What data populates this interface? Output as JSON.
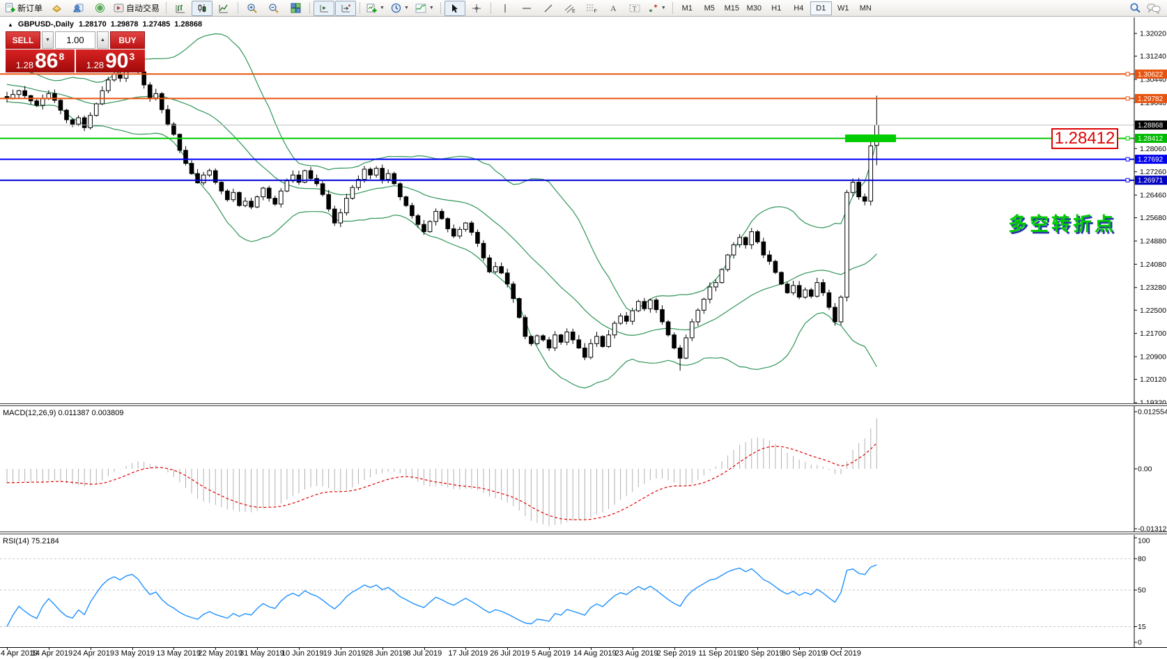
{
  "toolbar": {
    "new_order_label": "新订单",
    "auto_trading_label": "自动交易",
    "timeframes": [
      "M1",
      "M5",
      "M15",
      "M30",
      "H1",
      "H4",
      "D1",
      "W1",
      "MN"
    ],
    "active_timeframe": "D1"
  },
  "chart_header": {
    "symbol_period": "GBPUSD-,Daily",
    "open": "1.28170",
    "high": "1.29878",
    "low": "1.27485",
    "close": "1.28868"
  },
  "trade_panel": {
    "sell_label": "SELL",
    "buy_label": "BUY",
    "volume": "1.00",
    "sell_price": {
      "prefix": "1.28",
      "big": "86",
      "sup": "8"
    },
    "buy_price": {
      "prefix": "1.28",
      "big": "90",
      "sup": "3"
    }
  },
  "price_axis": {
    "top": 1.3202,
    "bottom": 1.1932,
    "ticks": [
      "1.32020",
      "1.31240",
      "1.30440",
      "1.29640",
      "1.28060",
      "1.27260",
      "1.26460",
      "1.25680",
      "1.24880",
      "1.24080",
      "1.23280",
      "1.22500",
      "1.21700",
      "1.20900",
      "1.20120",
      "1.19320"
    ]
  },
  "levels": [
    {
      "price": 1.30622,
      "label": "1.30622",
      "color": "#e8530e",
      "badge_bg": "#e8530e",
      "badge_fg": "#ffffff",
      "width": 2,
      "handle": true,
      "name": "hline-1-30622"
    },
    {
      "price": 1.29782,
      "label": "1.29782",
      "color": "#e8530e",
      "badge_bg": "#e8530e",
      "badge_fg": "#ffffff",
      "width": 2,
      "handle": true,
      "name": "hline-1-29782"
    },
    {
      "price": 1.28868,
      "label": "1.28868",
      "color": "#c0c0c0",
      "badge_bg": "#000000",
      "badge_fg": "#ffffff",
      "width": 1,
      "handle": false,
      "name": "current-bid-line"
    },
    {
      "price": 1.28412,
      "label": "1.28412",
      "color": "#00cc00",
      "badge_bg": "#00ba00",
      "badge_fg": "#ffffff",
      "width": 2,
      "handle": true,
      "name": "hline-1-28412"
    },
    {
      "price": 1.27692,
      "label": "1.27692",
      "color": "#0000ff",
      "badge_bg": "#0000f0",
      "badge_fg": "#ffffff",
      "width": 2,
      "handle": true,
      "name": "hline-1-27692"
    },
    {
      "price": 1.26971,
      "label": "1.26971",
      "color": "#0000d8",
      "badge_bg": "#0000c0",
      "badge_fg": "#ffffff",
      "width": 2,
      "handle": true,
      "name": "hline-1-26971"
    }
  ],
  "annotations": {
    "callout": {
      "text": "1.28412",
      "color": "#dd0101"
    },
    "note": {
      "text": "多空转折点",
      "color": "#00cc00",
      "shadow": "#2838a8"
    },
    "highlight_bar": {
      "price": 1.28412,
      "x": 1213,
      "w": 73,
      "h": 11,
      "color": "#00cc00"
    }
  },
  "macd": {
    "label": "MACD(12,26,9)",
    "value_main": "0.011387",
    "value_signal": "0.003809",
    "axis_ticks": [
      "0.012554",
      "0.00",
      "-0.013128"
    ],
    "max": 0.012554,
    "min": -0.013128
  },
  "rsi": {
    "label": "RSI(14)",
    "value": "75.2184",
    "axis_ticks": [
      "100",
      "80",
      "50",
      "15",
      "0"
    ],
    "grid_levels": [
      80,
      50,
      15
    ]
  },
  "date_axis": [
    "4 Apr 2019",
    "14 Apr 2019",
    "24 Apr 2019",
    "3 May 2019",
    "13 May 2019",
    "22 May 2019",
    "31 May 2019",
    "10 Jun 2019",
    "19 Jun 2019",
    "28 Jun 2019",
    "8 Jul 2019",
    "17 Jul 2019",
    "26 Jul 2019",
    "5 Aug 2019",
    "14 Aug 2019",
    "23 Aug 2019",
    "2 Sep 2019",
    "11 Sep 2019",
    "20 Sep 2019",
    "30 Sep 2019",
    "9 Oct 2019"
  ],
  "chart_data": {
    "type": "candlestick",
    "symbol": "GBPUSD",
    "period": "Daily",
    "x_range": [
      "4 Apr 2019",
      "11 Oct 2019"
    ],
    "y_range": [
      1.1932,
      1.3202
    ],
    "label_every": 7,
    "closes": [
      1.2978,
      1.2992,
      1.3005,
      1.2988,
      1.297,
      1.2955,
      1.2978,
      1.2995,
      1.2972,
      1.2938,
      1.2905,
      1.289,
      1.2912,
      1.2878,
      1.292,
      1.296,
      1.3005,
      1.3042,
      1.3063,
      1.3048,
      1.3078,
      1.3092,
      1.307,
      1.3025,
      1.298,
      1.2995,
      1.294,
      1.289,
      1.2855,
      1.28,
      1.2755,
      1.272,
      1.2688,
      1.2715,
      1.273,
      1.269,
      1.266,
      1.263,
      1.2655,
      1.261,
      1.2625,
      1.2605,
      1.264,
      1.267,
      1.2635,
      1.2615,
      1.266,
      1.2695,
      1.2715,
      1.269,
      1.273,
      1.2703,
      1.2685,
      1.2648,
      1.2598,
      1.255,
      1.2585,
      1.2635,
      1.2672,
      1.27,
      1.2735,
      1.2715,
      1.2738,
      1.27,
      1.272,
      1.2685,
      1.264,
      1.261,
      1.2575,
      1.2545,
      1.252,
      1.2555,
      1.259,
      1.2565,
      1.253,
      1.2505,
      1.2528,
      1.255,
      1.2518,
      1.248,
      1.243,
      1.2382,
      1.24,
      1.2378,
      1.234,
      1.229,
      1.2225,
      1.216,
      1.2135,
      1.2162,
      1.2148,
      1.212,
      1.2165,
      1.214,
      1.2175,
      1.2148,
      1.212,
      1.2088,
      1.2135,
      1.216,
      1.2125,
      1.2165,
      1.2205,
      1.223,
      1.2212,
      1.2248,
      1.228,
      1.2255,
      1.2285,
      1.2252,
      1.221,
      1.2165,
      1.212,
      1.2085,
      1.2155,
      1.221,
      1.225,
      1.2288,
      1.233,
      1.2345,
      1.239,
      1.244,
      1.2475,
      1.25,
      1.2475,
      1.252,
      1.2485,
      1.244,
      1.2418,
      1.238,
      1.234,
      1.231,
      1.2335,
      1.2295,
      1.232,
      1.2298,
      1.2345,
      1.231,
      1.226,
      1.221,
      1.2295,
      1.2655,
      1.269,
      1.264,
      1.2625,
      1.2815,
      1.28868
    ],
    "last_candle": {
      "open": 1.2817,
      "high": 1.29878,
      "low": 1.27485,
      "close": 1.28868
    },
    "low_spike": {
      "index": 113,
      "low": 1.2042
    },
    "indicators": {
      "bollinger": {
        "period": 20,
        "deviation": 2,
        "color": "#2e9457"
      },
      "macd": {
        "fast": 12,
        "slow": 26,
        "signal": 9,
        "hist_color": "#b0b0b0",
        "signal_color": "#e00000"
      },
      "rsi": {
        "period": 14,
        "color": "#1e90ff"
      }
    }
  }
}
